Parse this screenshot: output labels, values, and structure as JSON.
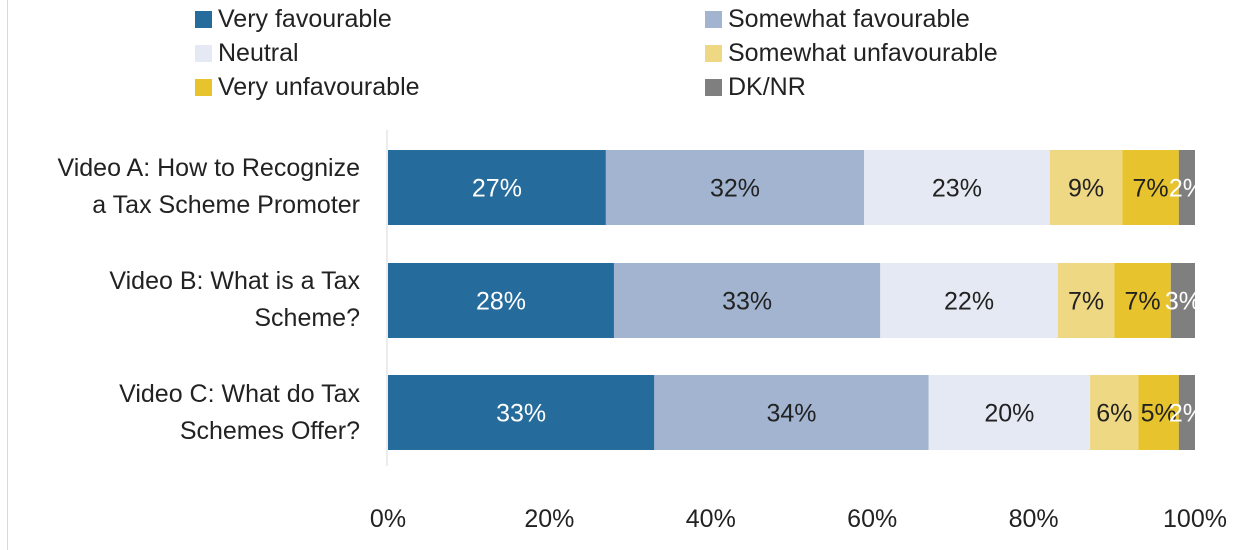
{
  "chart_data": {
    "type": "bar",
    "orientation": "horizontal",
    "stacked": true,
    "categories": [
      "Video A: How to Recognize a Tax Scheme Promoter",
      "Video B: What is a Tax Scheme?",
      "Video C: What do Tax Schemes Offer?"
    ],
    "category_lines": [
      [
        "Video A: How to Recognize",
        "a Tax Scheme Promoter"
      ],
      [
        "Video B: What is a Tax",
        "Scheme?"
      ],
      [
        "Video C: What do Tax",
        "Schemes Offer?"
      ]
    ],
    "series": [
      {
        "name": "Very favourable",
        "color": "#256B9B",
        "values": [
          27,
          28,
          33
        ],
        "labels": [
          "27%",
          "28%",
          "33%"
        ],
        "label_color": "#ffffff"
      },
      {
        "name": "Somewhat favourable",
        "color": "#A2B4D0",
        "values": [
          32,
          33,
          34
        ],
        "labels": [
          "32%",
          "33%",
          "34%"
        ],
        "label_color": "#222222"
      },
      {
        "name": "Neutral",
        "color": "#E4E9F3",
        "values": [
          23,
          22,
          20
        ],
        "labels": [
          "23%",
          "22%",
          "20%"
        ],
        "label_color": "#222222"
      },
      {
        "name": "Somewhat unfavourable",
        "color": "#EFD883",
        "values": [
          9,
          7,
          6
        ],
        "labels": [
          "9%",
          "7%",
          "6%"
        ],
        "label_color": "#222222"
      },
      {
        "name": "Very unfavourable",
        "color": "#E7C32E",
        "values": [
          7,
          7,
          5
        ],
        "labels": [
          "7%",
          "7%",
          "5%"
        ],
        "label_color": "#222222"
      },
      {
        "name": "DK/NR",
        "color": "#7F7F7F",
        "values": [
          2,
          3,
          2
        ],
        "labels": [
          "2%",
          "3%",
          "2%"
        ],
        "label_color": "#ffffff"
      }
    ],
    "xlim": [
      0,
      100
    ],
    "xticks": [
      "0%",
      "20%",
      "40%",
      "60%",
      "80%",
      "100%"
    ],
    "legend_position": "top",
    "grid": false
  }
}
